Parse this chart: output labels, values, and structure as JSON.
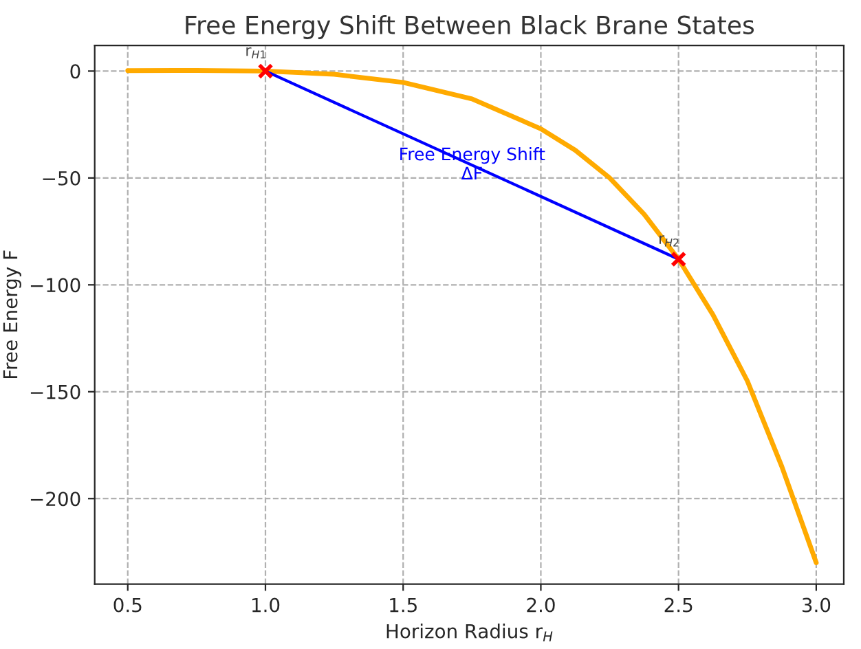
{
  "chart_data": {
    "type": "line",
    "title": "Free Energy Shift Between Black Brane States",
    "xlabel": "Horizon Radius r$_{H}$",
    "ylabel": "Free Energy F",
    "series": [
      {
        "color": "#ffaa00",
        "marker": "none",
        "x": [
          0.5,
          0.75,
          1.0,
          1.25,
          1.5,
          1.75,
          2.0,
          2.125,
          2.25,
          2.375,
          2.5,
          2.625,
          2.75,
          2.875,
          3.0
        ],
        "values": [
          0.2,
          0.3,
          0,
          -1.5,
          -5.3,
          -13,
          -27,
          -37,
          -50,
          -67,
          -88,
          -114,
          -145,
          -185,
          -230
        ]
      },
      {
        "color": "#0000ff",
        "marker": "none",
        "x": [
          1.0,
          2.5
        ],
        "values": [
          0,
          -88
        ]
      },
      {
        "type": "scatter",
        "color": "#ff0000",
        "marker": "cross",
        "x": [
          1.0,
          2.5
        ],
        "values": [
          0,
          -88
        ]
      }
    ],
    "annotations": [
      {
        "text": "r$_{H1}$",
        "x": 1.0,
        "y": 0
      },
      {
        "text": "r$_{H2}$",
        "x": 2.5,
        "y": -88
      },
      {
        "text": "Free Energy Shift\nΔF",
        "x": 1.75,
        "y": -44
      }
    ],
    "xlim": [
      0.38,
      3.1
    ],
    "ylim": [
      -240,
      12
    ],
    "xticks": [
      0.5,
      {
        "value": 1,
        "label": "1.0"
      },
      1.5,
      {
        "value": 2,
        "label": "2.0"
      },
      2.5,
      {
        "value": 3,
        "label": "3.0"
      }
    ],
    "yticks": [
      {
        "value": 0,
        "label": "0"
      },
      {
        "value": -50,
        "label": "−50"
      },
      {
        "value": -100,
        "label": "−100"
      },
      {
        "value": -150,
        "label": "−150"
      },
      {
        "value": -200,
        "label": "−200"
      }
    ],
    "grid": true
  }
}
